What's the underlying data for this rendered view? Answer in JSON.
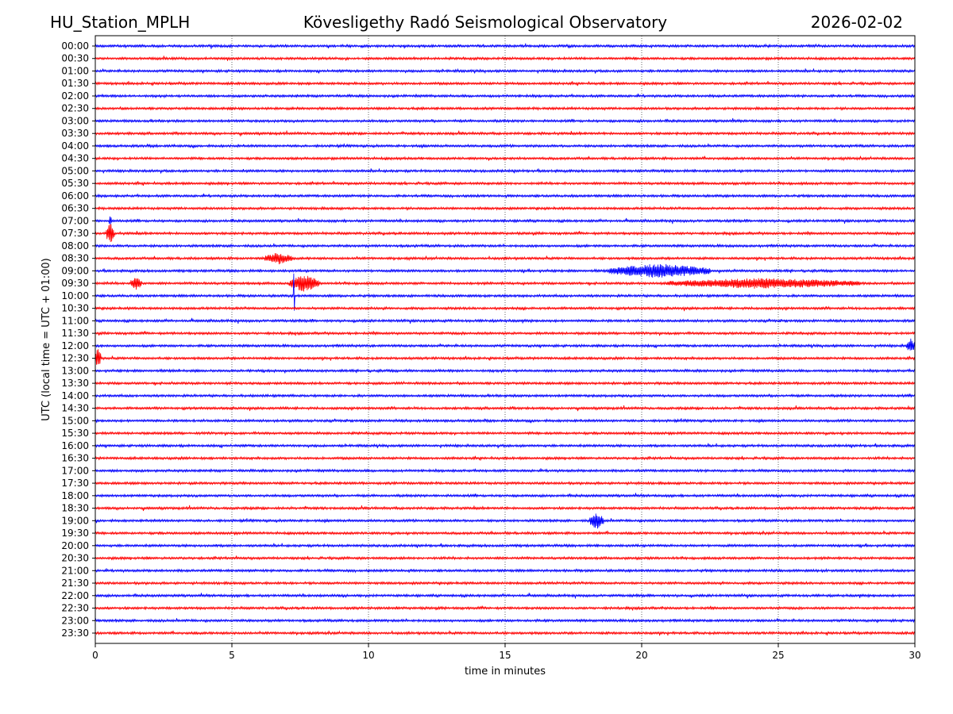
{
  "chart_data": {
    "type": "line",
    "station": "HU_Station_MPLH",
    "title": "Kövesligethy Radó Seismological Observatory",
    "date": "2026-02-02",
    "xlabel": "time in minutes",
    "ylabel": "UTC (local time = UTC + 01:00)",
    "xlim": [
      0,
      30
    ],
    "xticks": [
      0,
      5,
      10,
      15,
      20,
      25,
      30
    ],
    "grid": "vertical dotted",
    "colors": [
      "#0000ff",
      "#ff0000"
    ],
    "rows": [
      "00:00",
      "00:30",
      "01:00",
      "01:30",
      "02:00",
      "02:30",
      "03:00",
      "03:30",
      "04:00",
      "04:30",
      "05:00",
      "05:30",
      "06:00",
      "06:30",
      "07:00",
      "07:30",
      "08:00",
      "08:30",
      "09:00",
      "09:30",
      "10:00",
      "10:30",
      "11:00",
      "11:30",
      "12:00",
      "12:30",
      "13:00",
      "13:30",
      "14:00",
      "14:30",
      "15:00",
      "15:30",
      "16:00",
      "16:30",
      "17:00",
      "17:30",
      "18:00",
      "18:30",
      "19:00",
      "19:30",
      "20:00",
      "20:30",
      "21:00",
      "21:30",
      "22:00",
      "22:30",
      "23:00",
      "23:30"
    ],
    "noise_amplitude": 0.08,
    "events": [
      {
        "row": "07:30",
        "t_start": 0.4,
        "t_end": 0.7,
        "amplitude": 0.9
      },
      {
        "row": "07:00",
        "t_start": 0.5,
        "t_end": 0.6,
        "amplitude": 0.5
      },
      {
        "row": "08:30",
        "t_start": 6.2,
        "t_end": 7.2,
        "amplitude": 0.5
      },
      {
        "row": "09:00",
        "t_start": 18.8,
        "t_end": 22.5,
        "amplitude": 0.6
      },
      {
        "row": "09:30",
        "t_start": 1.3,
        "t_end": 1.7,
        "amplitude": 0.6
      },
      {
        "row": "09:30",
        "t_start": 7.1,
        "t_end": 8.2,
        "amplitude": 0.7
      },
      {
        "row": "09:30",
        "t_start": 20.9,
        "t_end": 28.0,
        "amplitude": 0.45
      },
      {
        "row": "10:00",
        "t_start": 7.25,
        "t_end": 7.3,
        "amplitude": 2.5
      },
      {
        "row": "12:00",
        "t_start": 29.7,
        "t_end": 30.0,
        "amplitude": 0.6
      },
      {
        "row": "12:30",
        "t_start": 0.0,
        "t_end": 0.2,
        "amplitude": 0.9
      },
      {
        "row": "19:00",
        "t_start": 18.1,
        "t_end": 18.6,
        "amplitude": 0.7
      }
    ]
  }
}
